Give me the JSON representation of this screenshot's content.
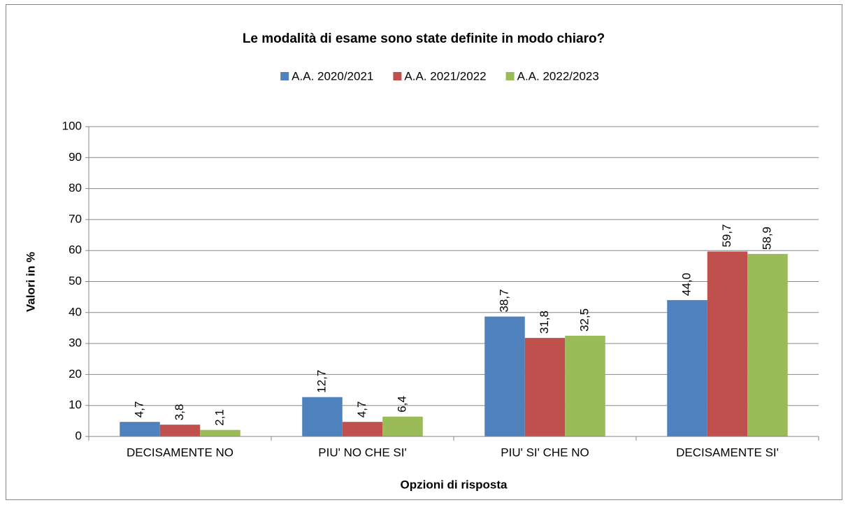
{
  "chart_data": {
    "type": "bar",
    "title": "Le modalità di esame sono state definite in modo chiaro?",
    "x_label": "Opzioni di risposta",
    "y_label": "Valori in %",
    "categories": [
      "DECISAMENTE NO",
      "PIU' NO CHE SI'",
      "PIU' SI' CHE NO",
      "DECISAMENTE SI'"
    ],
    "series": [
      {
        "name": "A.A. 2020/2021",
        "color": "#4f81bd",
        "values": [
          4.7,
          12.7,
          38.7,
          44.0
        ],
        "value_labels": [
          "4,7",
          "12,7",
          "38,7",
          "44,0"
        ]
      },
      {
        "name": "A.A. 2021/2022",
        "color": "#c0504d",
        "values": [
          3.8,
          4.7,
          31.8,
          59.7
        ],
        "value_labels": [
          "3,8",
          "4,7",
          "31,8",
          "59,7"
        ]
      },
      {
        "name": "A.A. 2022/2023",
        "color": "#9bbb59",
        "values": [
          2.1,
          6.4,
          32.5,
          58.9
        ],
        "value_labels": [
          "2,1",
          "6,4",
          "32,5",
          "58,9"
        ]
      }
    ],
    "ylim": [
      0,
      100
    ],
    "yticks": [
      0,
      10,
      20,
      30,
      40,
      50,
      60,
      70,
      80,
      90,
      100
    ],
    "grid": true,
    "legend": "top"
  }
}
